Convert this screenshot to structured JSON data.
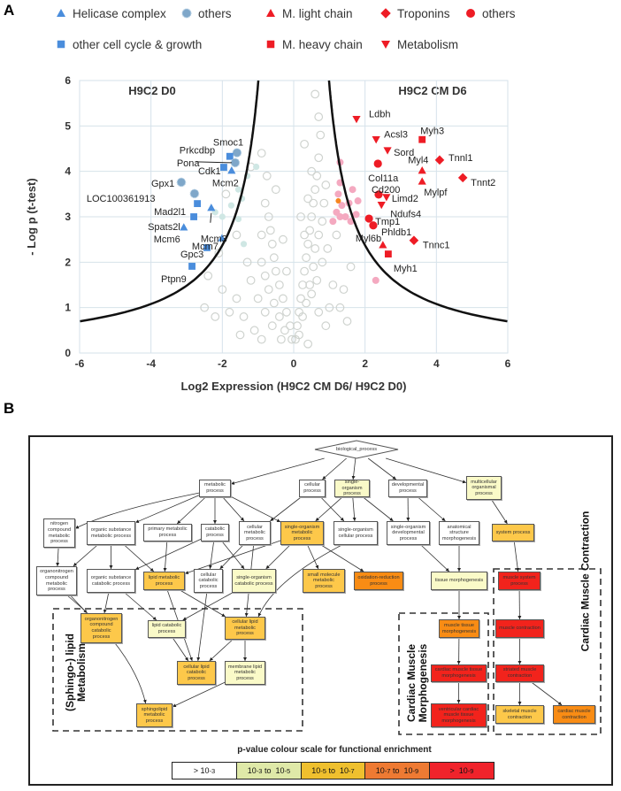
{
  "panel_a": {
    "panel_letter": "A",
    "legend": {
      "left": [
        {
          "label": "Helicase complex",
          "shape": "triangle",
          "color": "#4a8ddc"
        },
        {
          "label": "others",
          "shape": "dotted-circle",
          "color": "#7fa7c9"
        },
        {
          "label": "other cell cycle & growth",
          "shape": "square",
          "color": "#4a8ddc"
        }
      ],
      "right": [
        {
          "label": "M. light chain",
          "shape": "triangle",
          "color": "#ee1c25"
        },
        {
          "label": "Troponins",
          "shape": "diamond",
          "color": "#ee1c25"
        },
        {
          "label": "others",
          "shape": "circle",
          "color": "#ee1c25"
        },
        {
          "label": "M. heavy chain",
          "shape": "square",
          "color": "#ee1c25"
        },
        {
          "label": "Metabolism",
          "shape": "inverted-triangle",
          "color": "#ee1c25"
        }
      ]
    },
    "left_title": "H9C2 D0",
    "right_title": "H9C2 CM D6"
  },
  "chart_data": {
    "type": "scatter",
    "xlabel": "Log2 Expression (H9C2 CM D6/ H9C2 D0)",
    "ylabel": "- Log p (t-test)",
    "xlim": [
      -6,
      6
    ],
    "ylim": [
      0,
      6
    ],
    "xticks": [
      "-6",
      "-4",
      "-2",
      "0",
      "2",
      "4",
      "6"
    ],
    "yticks": [
      "0",
      "1",
      "2",
      "3",
      "4",
      "5",
      "6"
    ],
    "grid": true,
    "threshold_curve": {
      "formula": "y = c / (|x| - x0)",
      "c": 3.96,
      "x0": 0.33,
      "color": "#111111"
    },
    "labeled_points": [
      {
        "name": "Smoc1",
        "x": -1.59,
        "y": 4.41,
        "shape": "dotted-circle",
        "color": "#7fa7c9"
      },
      {
        "name": "Prkcdbp",
        "x": -1.79,
        "y": 4.33,
        "shape": "square",
        "color": "#4a8ddc"
      },
      {
        "name": "Pona",
        "x": -1.64,
        "y": 4.19,
        "shape": "dotted-circle",
        "color": "#7fa7c9"
      },
      {
        "name": "Cdk1",
        "x": -1.96,
        "y": 4.09,
        "shape": "square",
        "color": "#4a8ddc"
      },
      {
        "name": "Mcm2",
        "x": -1.74,
        "y": 4.02,
        "shape": "triangle",
        "color": "#4a8ddc"
      },
      {
        "name": "Gpx1",
        "x": -3.15,
        "y": 3.76,
        "shape": "dotted-circle",
        "color": "#7fa7c9"
      },
      {
        "name": "LOC100361913",
        "x": -2.78,
        "y": 3.51,
        "shape": "dotted-circle",
        "color": "#7fa7c9"
      },
      {
        "name": "Mad2l1",
        "x": -2.7,
        "y": 3.29,
        "shape": "square",
        "color": "#4a8ddc"
      },
      {
        "name": "Mcm3",
        "x": -2.31,
        "y": 3.2,
        "shape": "triangle",
        "color": "#4a8ddc"
      },
      {
        "name": "Spats2l",
        "x": -2.8,
        "y": 3.0,
        "shape": "square",
        "color": "#4a8ddc"
      },
      {
        "name": "Mcm6",
        "x": -3.08,
        "y": 2.77,
        "shape": "triangle",
        "color": "#4a8ddc"
      },
      {
        "name": "Mcm7",
        "x": -2.01,
        "y": 2.53,
        "shape": "triangle",
        "color": "#4a8ddc"
      },
      {
        "name": "Gpc3",
        "x": -2.43,
        "y": 2.32,
        "shape": "square",
        "color": "#4a8ddc"
      },
      {
        "name": "Ptpn9",
        "x": -2.85,
        "y": 1.91,
        "shape": "square",
        "color": "#4a8ddc"
      },
      {
        "name": "Ldbh",
        "x": 1.76,
        "y": 5.15,
        "shape": "inverted-triangle",
        "color": "#ee1c25"
      },
      {
        "name": "Acsl3",
        "x": 2.31,
        "y": 4.7,
        "shape": "inverted-triangle",
        "color": "#ee1c25"
      },
      {
        "name": "Myh3",
        "x": 3.6,
        "y": 4.7,
        "shape": "square",
        "color": "#ee1c25"
      },
      {
        "name": "Sord",
        "x": 2.63,
        "y": 4.46,
        "shape": "inverted-triangle",
        "color": "#ee1c25"
      },
      {
        "name": "Tnnl1",
        "x": 4.09,
        "y": 4.25,
        "shape": "diamond",
        "color": "#ee1c25"
      },
      {
        "name": "Myl4",
        "x": 3.6,
        "y": 4.02,
        "shape": "triangle",
        "color": "#ee1c25"
      },
      {
        "name": "Col11a",
        "x": 2.36,
        "y": 4.17,
        "shape": "circle",
        "color": "#ee1c25"
      },
      {
        "name": "Tnnt2",
        "x": 4.74,
        "y": 3.86,
        "shape": "diamond",
        "color": "#ee1c25"
      },
      {
        "name": "Mylpf",
        "x": 3.6,
        "y": 3.78,
        "shape": "triangle",
        "color": "#ee1c25"
      },
      {
        "name": "Cd200",
        "x": 2.38,
        "y": 3.49,
        "shape": "circle",
        "color": "#ee1c25"
      },
      {
        "name": "Limd2",
        "x": 2.6,
        "y": 3.43,
        "shape": "inverted-triangle",
        "color": "#ee1c25"
      },
      {
        "name": "Ndufs4",
        "x": 2.46,
        "y": 3.26,
        "shape": "inverted-triangle",
        "color": "#ee1c25"
      },
      {
        "name": "Tmp1",
        "x": 2.11,
        "y": 2.96,
        "shape": "circle",
        "color": "#ee1c25"
      },
      {
        "name": "Phldb1",
        "x": 2.23,
        "y": 2.81,
        "shape": "circle",
        "color": "#ee1c25"
      },
      {
        "name": "Tnnc1",
        "x": 3.37,
        "y": 2.48,
        "shape": "diamond",
        "color": "#ee1c25"
      },
      {
        "name": "Myl6b",
        "x": 2.5,
        "y": 2.38,
        "shape": "triangle",
        "color": "#ee1c25"
      },
      {
        "name": "Myh1",
        "x": 2.65,
        "y": 2.18,
        "shape": "square",
        "color": "#ee1c25"
      }
    ],
    "light_blue_points": [
      [
        -1.3,
        3.9
      ],
      [
        -1.55,
        3.6
      ],
      [
        -1.45,
        3.4
      ],
      [
        -2.2,
        3.1
      ],
      [
        -2.0,
        3.0
      ],
      [
        -1.55,
        2.95
      ],
      [
        -1.05,
        4.1
      ],
      [
        -1.4,
        2.4
      ],
      [
        -1.75,
        3.25
      ]
    ],
    "pink_points": [
      [
        1.3,
        3.75
      ],
      [
        1.25,
        3.5
      ],
      [
        1.35,
        3.25
      ],
      [
        1.45,
        3.0
      ],
      [
        1.55,
        3.3
      ],
      [
        1.8,
        3.35
      ],
      [
        1.75,
        3.05
      ],
      [
        1.65,
        3.6
      ],
      [
        1.6,
        2.9
      ],
      [
        1.1,
        2.9
      ],
      [
        1.2,
        3.1
      ],
      [
        1.3,
        4.2
      ],
      [
        2.3,
        1.6
      ],
      [
        1.3,
        3.0
      ]
    ],
    "orange_points": [
      [
        1.25,
        3.35
      ]
    ],
    "gray_points": [
      [
        0.05,
        0.3
      ],
      [
        0.1,
        0.6
      ],
      [
        0.15,
        0.9
      ],
      [
        0.2,
        1.2
      ],
      [
        0.25,
        1.5
      ],
      [
        0.3,
        1.8
      ],
      [
        0.35,
        2.1
      ],
      [
        0.4,
        2.4
      ],
      [
        0.45,
        2.7
      ],
      [
        0.5,
        3.0
      ],
      [
        0.55,
        3.3
      ],
      [
        0.6,
        3.6
      ],
      [
        0.65,
        3.9
      ],
      [
        0.7,
        4.3
      ],
      [
        0.15,
        0.4
      ],
      [
        0.25,
        0.8
      ],
      [
        0.35,
        1.1
      ],
      [
        0.45,
        1.5
      ],
      [
        0.55,
        1.9
      ],
      [
        0.6,
        2.3
      ],
      [
        0.7,
        2.6
      ],
      [
        0.8,
        2.9
      ],
      [
        0.85,
        3.3
      ],
      [
        0.5,
        1.3
      ],
      [
        0.65,
        1.6
      ],
      [
        0.8,
        2.0
      ],
      [
        0.95,
        2.3
      ],
      [
        0.3,
        2.6
      ],
      [
        0.2,
        3.0
      ],
      [
        0.4,
        3.4
      ],
      [
        0.5,
        4.0
      ],
      [
        0.3,
        4.6
      ],
      [
        1.1,
        1.5
      ],
      [
        1.3,
        1.0
      ],
      [
        1.2,
        2.6
      ],
      [
        1.0,
        1.0
      ],
      [
        0.9,
        0.6
      ],
      [
        1.5,
        0.7
      ],
      [
        1.4,
        1.4
      ],
      [
        0.6,
        5.7
      ],
      [
        0.7,
        5.2
      ],
      [
        0.75,
        4.8
      ],
      [
        0.9,
        3.7
      ],
      [
        1.6,
        1.9
      ],
      [
        0.4,
        0.2
      ],
      [
        0.7,
        0.9
      ],
      [
        -0.05,
        0.3
      ],
      [
        -0.1,
        0.6
      ],
      [
        -0.2,
        0.9
      ],
      [
        -0.3,
        1.2
      ],
      [
        -0.4,
        1.5
      ],
      [
        -0.5,
        1.8
      ],
      [
        -0.55,
        2.1
      ],
      [
        -0.6,
        2.4
      ],
      [
        -0.65,
        2.7
      ],
      [
        -0.7,
        3.0
      ],
      [
        -0.25,
        0.5
      ],
      [
        -0.4,
        0.8
      ],
      [
        -0.55,
        1.1
      ],
      [
        -0.7,
        1.4
      ],
      [
        -0.8,
        1.7
      ],
      [
        -0.9,
        2.0
      ],
      [
        -0.6,
        0.6
      ],
      [
        -0.8,
        0.9
      ],
      [
        -1.0,
        1.2
      ],
      [
        -1.2,
        1.6
      ],
      [
        -1.1,
        0.5
      ],
      [
        -1.4,
        0.8
      ],
      [
        -1.6,
        1.2
      ],
      [
        -1.8,
        0.9
      ],
      [
        -1.5,
        0.4
      ],
      [
        -2.0,
        1.4
      ],
      [
        -1.3,
        2.0
      ],
      [
        -0.9,
        2.6
      ],
      [
        -0.8,
        3.3
      ],
      [
        -0.75,
        3.9
      ],
      [
        -0.9,
        4.4
      ],
      [
        -1.2,
        4.1
      ],
      [
        -0.5,
        3.6
      ],
      [
        -0.3,
        2.5
      ],
      [
        -0.2,
        1.8
      ],
      [
        -2.4,
        1.7
      ],
      [
        -2.1,
        2.2
      ],
      [
        -1.6,
        2.6
      ],
      [
        -1.9,
        3.5
      ],
      [
        -2.2,
        0.8
      ],
      [
        -2.5,
        1.0
      ],
      [
        -0.35,
        0.3
      ],
      [
        -0.9,
        0.3
      ]
    ]
  },
  "panel_b": {
    "panel_letter": "B",
    "level_colors": [
      "#ffffff",
      "#fafac8",
      "#fdc84a",
      "#f98c14",
      "#f2231c"
    ],
    "nodes": [
      {
        "id": "bp",
        "label": "biological_process",
        "level": 0
      },
      {
        "id": "metab",
        "label": "metabolic process",
        "level": 0
      },
      {
        "id": "cell",
        "label": "cellular process",
        "level": 0
      },
      {
        "id": "sop",
        "label": "single-organism process",
        "level": 1
      },
      {
        "id": "dev",
        "label": "developmental process",
        "level": 0
      },
      {
        "id": "multi",
        "label": "multicellular organismal process",
        "level": 1
      },
      {
        "id": "nitro",
        "label": "nitrogen compound metabolic process",
        "level": 0
      },
      {
        "id": "osm",
        "label": "organic substance metabolic process",
        "level": 0
      },
      {
        "id": "prim",
        "label": "primary metabolic process",
        "level": 0
      },
      {
        "id": "catab",
        "label": "catabolic process",
        "level": 0
      },
      {
        "id": "cellmet",
        "label": "cellular metabolic process",
        "level": 0
      },
      {
        "id": "somet",
        "label": "single-organism metabolic process",
        "level": 2
      },
      {
        "id": "socell",
        "label": "single-organism cellular process",
        "level": 0
      },
      {
        "id": "sodev",
        "label": "single-organism developmental process",
        "level": 0
      },
      {
        "id": "anat",
        "label": "anatomical structure morphogenesis",
        "level": 0
      },
      {
        "id": "sys",
        "label": "system process",
        "level": 2
      },
      {
        "id": "onmet",
        "label": "organonitrogen compound metabolic process",
        "level": 0
      },
      {
        "id": "oscat",
        "label": "organic substance catabolic process",
        "level": 0
      },
      {
        "id": "lipmet",
        "label": "lipid metabolic process",
        "level": 2
      },
      {
        "id": "cellcat",
        "label": "cellular catabolic process",
        "level": 0
      },
      {
        "id": "socat",
        "label": "single-organism catabolic process",
        "level": 1
      },
      {
        "id": "small",
        "label": "small molecule metabolic process",
        "level": 2
      },
      {
        "id": "oxred",
        "label": "oxidation-reduction process",
        "level": 3
      },
      {
        "id": "tissue",
        "label": "tissue morphogenesis",
        "level": 1
      },
      {
        "id": "musys",
        "label": "muscle system process",
        "level": 4
      },
      {
        "id": "oncat",
        "label": "organonitrogen compound catabolic process",
        "level": 2
      },
      {
        "id": "lipcat",
        "label": "lipid catabolic process",
        "level": 1
      },
      {
        "id": "clipmet",
        "label": "cellular lipid metabolic process",
        "level": 2
      },
      {
        "id": "clipcat",
        "label": "cellular lipid catabolic process",
        "level": 2
      },
      {
        "id": "memlip",
        "label": "membrane lipid metabolic process",
        "level": 1
      },
      {
        "id": "sphingo",
        "label": "sphingolipid metabolic process",
        "level": 2
      },
      {
        "id": "mtm",
        "label": "muscle tissue morphogenesis",
        "level": 3
      },
      {
        "id": "cmtm",
        "label": "cardiac muscle tissue morphogenesis",
        "level": 4
      },
      {
        "id": "vcmtm",
        "label": "ventricular cardiac muscle tissue morphogenesis",
        "level": 4
      },
      {
        "id": "mcon",
        "label": "muscle contraction",
        "level": 4
      },
      {
        "id": "smcon",
        "label": "striated muscle contraction",
        "level": 4
      },
      {
        "id": "skcon",
        "label": "skeletal muscle contraction",
        "level": 2
      },
      {
        "id": "cmcon",
        "label": "cardiac muscle contraction",
        "level": 3
      }
    ],
    "edges": [
      [
        "bp",
        "metab"
      ],
      [
        "bp",
        "cell"
      ],
      [
        "bp",
        "sop"
      ],
      [
        "bp",
        "dev"
      ],
      [
        "bp",
        "multi"
      ],
      [
        "metab",
        "nitro"
      ],
      [
        "metab",
        "osm"
      ],
      [
        "metab",
        "prim"
      ],
      [
        "metab",
        "catab"
      ],
      [
        "metab",
        "cellmet"
      ],
      [
        "metab",
        "somet"
      ],
      [
        "cell",
        "cellmet"
      ],
      [
        "cell",
        "socell"
      ],
      [
        "sop",
        "somet"
      ],
      [
        "sop",
        "socell"
      ],
      [
        "sop",
        "sodev"
      ],
      [
        "dev",
        "sodev"
      ],
      [
        "dev",
        "anat"
      ],
      [
        "multi",
        "sys"
      ],
      [
        "nitro",
        "onmet"
      ],
      [
        "osm",
        "onmet"
      ],
      [
        "osm",
        "oscat"
      ],
      [
        "osm",
        "lipmet"
      ],
      [
        "prim",
        "lipmet"
      ],
      [
        "catab",
        "oscat"
      ],
      [
        "catab",
        "cellcat"
      ],
      [
        "catab",
        "socat"
      ],
      [
        "cellmet",
        "cellcat"
      ],
      [
        "cellmet",
        "clipmet"
      ],
      [
        "somet",
        "lipmet"
      ],
      [
        "somet",
        "socat"
      ],
      [
        "somet",
        "small"
      ],
      [
        "somet",
        "oxred"
      ],
      [
        "socell",
        "clipmet"
      ],
      [
        "sodev",
        "tissue"
      ],
      [
        "anat",
        "tissue"
      ],
      [
        "sys",
        "musys"
      ],
      [
        "onmet",
        "oncat"
      ],
      [
        "onmet",
        "sphingo"
      ],
      [
        "oscat",
        "oncat"
      ],
      [
        "oscat",
        "lipcat"
      ],
      [
        "lipmet",
        "clipmet"
      ],
      [
        "lipmet",
        "clipcat"
      ],
      [
        "cellcat",
        "clipcat"
      ],
      [
        "socat",
        "lipcat"
      ],
      [
        "lipcat",
        "clipcat"
      ],
      [
        "clipmet",
        "clipcat"
      ],
      [
        "clipmet",
        "memlip"
      ],
      [
        "memlip",
        "sphingo"
      ],
      [
        "tissue",
        "mtm"
      ],
      [
        "mtm",
        "cmtm"
      ],
      [
        "cmtm",
        "vcmtm"
      ],
      [
        "musys",
        "mcon"
      ],
      [
        "mcon",
        "smcon"
      ],
      [
        "smcon",
        "skcon"
      ],
      [
        "smcon",
        "cmcon"
      ]
    ],
    "groups": {
      "lipid": "(Sphingo-) lipid\nMetabolism",
      "morph": "Cardiac Muscle\nMorphogenesis",
      "contraction": "Cardiac Muscle Contraction"
    },
    "scale": {
      "title": "p-value colour scale for functional enrichment",
      "items": [
        {
          "label_html": "> 10<sup>-3</sup>",
          "color": "#ffffff"
        },
        {
          "label_html": "10<sup>-3</sup> &nbsp;to&nbsp; 10<sup>-5</sup>",
          "color": "#dfe9a8"
        },
        {
          "label_html": "10<sup>-5</sup> &nbsp;to&nbsp; 10<sup>-7</sup>",
          "color": "#efc02e"
        },
        {
          "label_html": "10<sup>-7</sup> &nbsp;to&nbsp; 10<sup>-9</sup>",
          "color": "#ee7a33"
        },
        {
          "label_html": ">&nbsp; 10<sup>-9</sup>",
          "color": "#f0232b"
        }
      ]
    }
  }
}
